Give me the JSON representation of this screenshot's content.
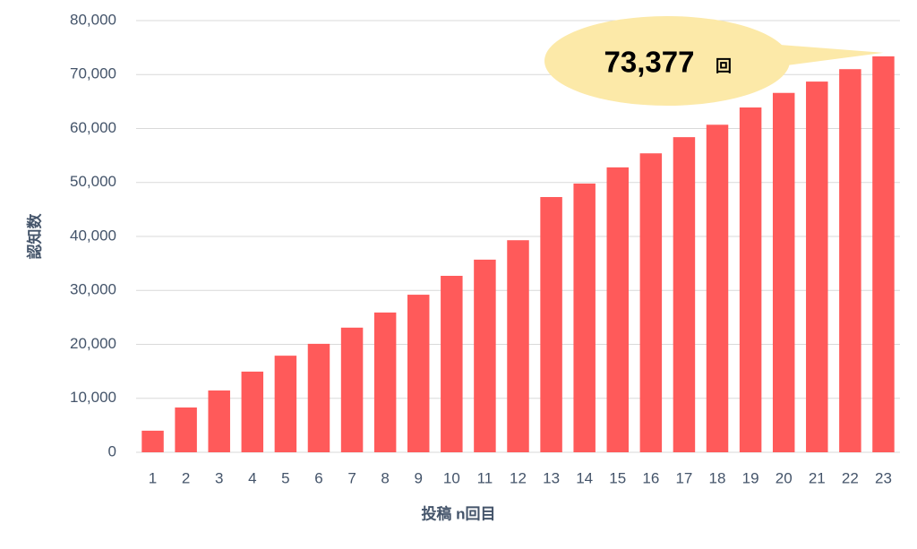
{
  "chart_data": {
    "type": "bar",
    "x_label": "投稿 n回目",
    "y_label": "認知数",
    "categories": [
      "1",
      "2",
      "3",
      "4",
      "5",
      "6",
      "7",
      "8",
      "9",
      "10",
      "11",
      "12",
      "13",
      "14",
      "15",
      "16",
      "17",
      "18",
      "19",
      "20",
      "21",
      "22",
      "23"
    ],
    "values": [
      4000,
      8300,
      11450,
      14950,
      17900,
      20100,
      23100,
      25900,
      29200,
      32700,
      35700,
      39300,
      47300,
      49800,
      52800,
      55400,
      58400,
      60700,
      63900,
      66600,
      68700,
      71000,
      73377
    ],
    "color": "#ff5a5a",
    "ylim": [
      0,
      80000
    ],
    "yticks": [
      0,
      {
        "value": 10000,
        "label": "10,000"
      },
      {
        "value": 20000,
        "label": "20,000"
      },
      {
        "value": 30000,
        "label": "30,000"
      },
      {
        "value": 40000,
        "label": "40,000"
      },
      {
        "value": 50000,
        "label": "50,000"
      },
      {
        "value": 60000,
        "label": "60,000"
      },
      {
        "value": 70000,
        "label": "70,000"
      },
      {
        "value": 80000,
        "label": "80,000"
      }
    ],
    "grid": true,
    "annotation": {
      "value": 73377,
      "label": "73,377",
      "unit": "回",
      "color": "#fce9a8"
    }
  }
}
